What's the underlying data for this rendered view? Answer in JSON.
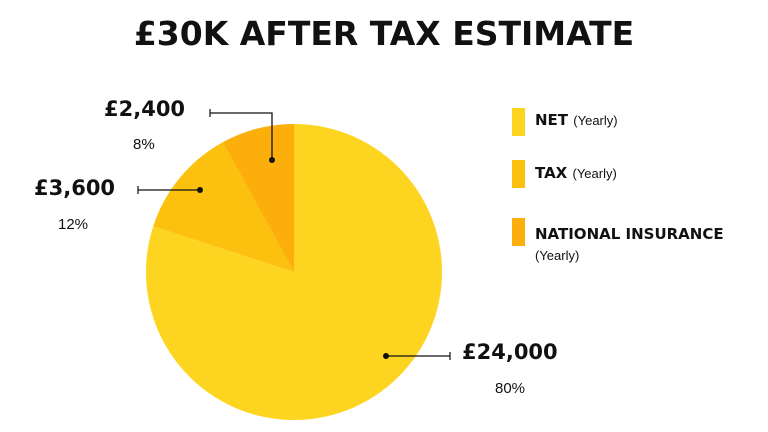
{
  "chart_data": {
    "type": "pie",
    "title": "£30K AFTER TAX ESTIMATE",
    "slices": [
      {
        "name": "NET",
        "value": 24000,
        "label": "£24,000",
        "percent": "80%",
        "color": "#fdd520"
      },
      {
        "name": "TAX",
        "value": 3600,
        "label": "£3,600",
        "percent": "12%",
        "color": "#fcc10e"
      },
      {
        "name": "NATIONAL INSURANCE",
        "value": 2400,
        "label": "£2,400",
        "percent": "8%",
        "color": "#fcaf0a"
      }
    ],
    "legend": {
      "placement": "right",
      "period": "(Yearly)"
    }
  }
}
